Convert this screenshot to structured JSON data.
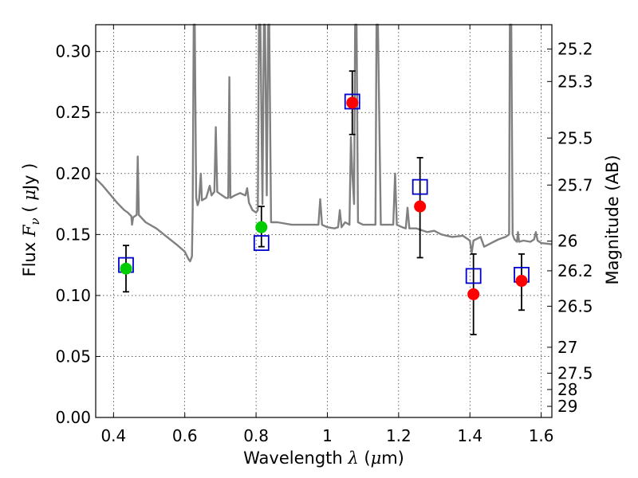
{
  "chart_data": {
    "type": "scatter",
    "title": "",
    "xlabel": {
      "pre": "Wavelength  ",
      "symbol": "λ",
      "post": " (",
      "unit_symbol": "μ",
      "unit_post": "m)"
    },
    "ylabel": {
      "pre": "Flux  ",
      "symbol": "F",
      "subscript": "ν",
      "post": "  (  ",
      "unit_symbol": "μ",
      "unit_post": "Jy )"
    },
    "y2label": "Magnitude (AB)",
    "xlim": [
      0.35,
      1.63
    ],
    "ylim": [
      0.0,
      0.322
    ],
    "grid": true,
    "x_ticks": [
      {
        "value": 0.4,
        "label": "0.4"
      },
      {
        "value": 0.6,
        "label": "0.6"
      },
      {
        "value": 0.8,
        "label": "0.8"
      },
      {
        "value": 1.0,
        "label": "1"
      },
      {
        "value": 1.2,
        "label": "1.2"
      },
      {
        "value": 1.4,
        "label": "1.4"
      },
      {
        "value": 1.6,
        "label": "1.6"
      }
    ],
    "y_ticks": [
      {
        "value": 0.0,
        "label": "0.00"
      },
      {
        "value": 0.05,
        "label": "0.05"
      },
      {
        "value": 0.1,
        "label": "0.10"
      },
      {
        "value": 0.15,
        "label": "0.15"
      },
      {
        "value": 0.2,
        "label": "0.20"
      },
      {
        "value": 0.25,
        "label": "0.25"
      },
      {
        "value": 0.3,
        "label": "0.30"
      }
    ],
    "y2_ticks": [
      {
        "mag": 25.2,
        "label": "25.2"
      },
      {
        "mag": 25.3,
        "label": "25.3"
      },
      {
        "mag": 25.5,
        "label": "25.5"
      },
      {
        "mag": 25.7,
        "label": "25.7"
      },
      {
        "mag": 26.0,
        "label": "26"
      },
      {
        "mag": 26.2,
        "label": "26.2"
      },
      {
        "mag": 26.5,
        "label": "26.5"
      },
      {
        "mag": 27.0,
        "label": "27"
      },
      {
        "mag": 27.5,
        "label": "27.5"
      },
      {
        "mag": 28.0,
        "label": "28"
      },
      {
        "mag": 29.0,
        "label": "29"
      }
    ],
    "spectrum": {
      "color": "#808080",
      "points": [
        [
          0.35,
          0.196
        ],
        [
          0.37,
          0.19
        ],
        [
          0.39,
          0.183
        ],
        [
          0.41,
          0.176
        ],
        [
          0.43,
          0.17
        ],
        [
          0.44,
          0.168
        ],
        [
          0.45,
          0.165
        ],
        [
          0.452,
          0.158
        ],
        [
          0.455,
          0.164
        ],
        [
          0.465,
          0.166
        ],
        [
          0.468,
          0.214
        ],
        [
          0.471,
          0.166
        ],
        [
          0.49,
          0.16
        ],
        [
          0.52,
          0.155
        ],
        [
          0.55,
          0.148
        ],
        [
          0.58,
          0.141
        ],
        [
          0.6,
          0.136
        ],
        [
          0.61,
          0.13
        ],
        [
          0.615,
          0.128
        ],
        [
          0.62,
          0.132
        ],
        [
          0.622,
          0.17
        ],
        [
          0.625,
          0.322
        ],
        [
          0.628,
          0.322
        ],
        [
          0.632,
          0.18
        ],
        [
          0.636,
          0.174
        ],
        [
          0.64,
          0.178
        ],
        [
          0.645,
          0.2
        ],
        [
          0.648,
          0.178
        ],
        [
          0.66,
          0.18
        ],
        [
          0.67,
          0.19
        ],
        [
          0.675,
          0.182
        ],
        [
          0.683,
          0.185
        ],
        [
          0.687,
          0.238
        ],
        [
          0.691,
          0.185
        ],
        [
          0.7,
          0.183
        ],
        [
          0.715,
          0.18
        ],
        [
          0.722,
          0.18
        ],
        [
          0.725,
          0.279
        ],
        [
          0.728,
          0.18
        ],
        [
          0.74,
          0.182
        ],
        [
          0.755,
          0.184
        ],
        [
          0.77,
          0.182
        ],
        [
          0.775,
          0.188
        ],
        [
          0.78,
          0.176
        ],
        [
          0.79,
          0.17
        ],
        [
          0.8,
          0.168
        ],
        [
          0.805,
          0.17
        ],
        [
          0.808,
          0.322
        ],
        [
          0.812,
          0.322
        ],
        [
          0.818,
          0.175
        ],
        [
          0.822,
          0.322
        ],
        [
          0.825,
          0.322
        ],
        [
          0.83,
          0.182
        ],
        [
          0.834,
          0.322
        ],
        [
          0.837,
          0.322
        ],
        [
          0.842,
          0.16
        ],
        [
          0.86,
          0.16
        ],
        [
          0.9,
          0.158
        ],
        [
          0.95,
          0.158
        ],
        [
          0.975,
          0.158
        ],
        [
          0.98,
          0.179
        ],
        [
          0.985,
          0.158
        ],
        [
          1.0,
          0.156
        ],
        [
          1.02,
          0.155
        ],
        [
          1.03,
          0.156
        ],
        [
          1.035,
          0.17
        ],
        [
          1.04,
          0.156
        ],
        [
          1.05,
          0.16
        ],
        [
          1.062,
          0.158
        ],
        [
          1.066,
          0.23
        ],
        [
          1.07,
          0.2
        ],
        [
          1.075,
          0.175
        ],
        [
          1.078,
          0.322
        ],
        [
          1.082,
          0.322
        ],
        [
          1.086,
          0.16
        ],
        [
          1.1,
          0.158
        ],
        [
          1.12,
          0.158
        ],
        [
          1.135,
          0.158
        ],
        [
          1.138,
          0.322
        ],
        [
          1.142,
          0.322
        ],
        [
          1.15,
          0.158
        ],
        [
          1.17,
          0.158
        ],
        [
          1.185,
          0.158
        ],
        [
          1.19,
          0.2
        ],
        [
          1.195,
          0.158
        ],
        [
          1.21,
          0.156
        ],
        [
          1.22,
          0.155
        ],
        [
          1.225,
          0.172
        ],
        [
          1.23,
          0.155
        ],
        [
          1.25,
          0.155
        ],
        [
          1.28,
          0.152
        ],
        [
          1.3,
          0.153
        ],
        [
          1.32,
          0.15
        ],
        [
          1.35,
          0.148
        ],
        [
          1.38,
          0.149
        ],
        [
          1.4,
          0.145
        ],
        [
          1.405,
          0.135
        ],
        [
          1.41,
          0.145
        ],
        [
          1.43,
          0.148
        ],
        [
          1.44,
          0.14
        ],
        [
          1.46,
          0.143
        ],
        [
          1.48,
          0.146
        ],
        [
          1.5,
          0.148
        ],
        [
          1.51,
          0.15
        ],
        [
          1.512,
          0.322
        ],
        [
          1.516,
          0.322
        ],
        [
          1.52,
          0.15
        ],
        [
          1.525,
          0.146
        ],
        [
          1.532,
          0.144
        ],
        [
          1.535,
          0.152
        ],
        [
          1.538,
          0.144
        ],
        [
          1.55,
          0.145
        ],
        [
          1.57,
          0.144
        ],
        [
          1.58,
          0.146
        ],
        [
          1.585,
          0.152
        ],
        [
          1.59,
          0.145
        ],
        [
          1.6,
          0.143
        ],
        [
          1.63,
          0.142
        ]
      ]
    },
    "error_bars": [
      {
        "x": 0.435,
        "y": 0.122,
        "low": 0.103,
        "high": 0.141
      },
      {
        "x": 0.815,
        "y": 0.156,
        "low": 0.14,
        "high": 0.173
      },
      {
        "x": 1.07,
        "y": 0.258,
        "low": 0.232,
        "high": 0.284
      },
      {
        "x": 1.26,
        "y": 0.173,
        "low": 0.131,
        "high": 0.213
      },
      {
        "x": 1.41,
        "y": 0.101,
        "low": 0.068,
        "high": 0.134
      },
      {
        "x": 1.545,
        "y": 0.112,
        "low": 0.088,
        "high": 0.134
      }
    ],
    "model_points": {
      "color": "#0000cc",
      "points": [
        {
          "x": 0.435,
          "y": 0.125
        },
        {
          "x": 0.815,
          "y": 0.143
        },
        {
          "x": 1.07,
          "y": 0.259
        },
        {
          "x": 1.26,
          "y": 0.189
        },
        {
          "x": 1.41,
          "y": 0.116
        },
        {
          "x": 1.545,
          "y": 0.117
        }
      ]
    },
    "optical_points": {
      "color": "#00cc00",
      "points": [
        {
          "x": 0.435,
          "y": 0.122
        },
        {
          "x": 0.815,
          "y": 0.156
        }
      ]
    },
    "nir_points": {
      "color": "#ff0000",
      "points": [
        {
          "x": 1.07,
          "y": 0.258
        },
        {
          "x": 1.26,
          "y": 0.173
        },
        {
          "x": 1.41,
          "y": 0.101
        },
        {
          "x": 1.545,
          "y": 0.112
        }
      ]
    }
  }
}
